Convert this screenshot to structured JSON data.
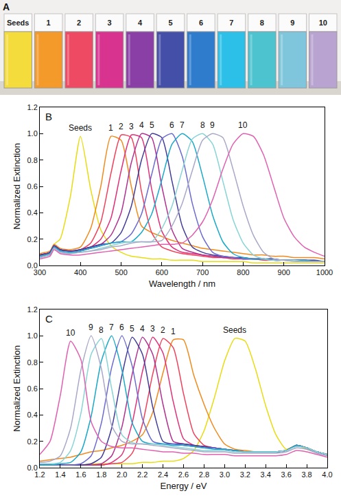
{
  "photo": {
    "panel_label": "A",
    "samples": [
      {
        "label": "Seeds",
        "color": "#f4dc3c"
      },
      {
        "label": "1",
        "color": "#f39a2a"
      },
      {
        "label": "2",
        "color": "#ee4a63"
      },
      {
        "label": "3",
        "color": "#d93390"
      },
      {
        "label": "4",
        "color": "#8a3fa6"
      },
      {
        "label": "5",
        "color": "#4450a8"
      },
      {
        "label": "6",
        "color": "#2f7ccc"
      },
      {
        "label": "7",
        "color": "#2cc0e8"
      },
      {
        "label": "8",
        "color": "#4cc3cf"
      },
      {
        "label": "9",
        "color": "#7fc6dc"
      },
      {
        "label": "10",
        "color": "#b9a3d1"
      }
    ]
  },
  "chart_data": [
    {
      "type": "line",
      "panel_label": "B",
      "xlabel": "Wavelength / nm",
      "ylabel": "Normalized Extinction",
      "xlim": [
        300,
        1000
      ],
      "xticks": [
        300,
        400,
        500,
        600,
        700,
        800,
        900,
        1000
      ],
      "ylim": [
        0,
        1.2
      ],
      "yticks": [
        {
          "value": 0,
          "label": "0.0"
        },
        0.2,
        0.4,
        0.6,
        0.8,
        {
          "value": 1,
          "label": "1.0"
        },
        1.2
      ],
      "grid": false,
      "x": [
        300,
        325,
        335,
        350,
        375,
        400,
        425,
        450,
        475,
        500,
        525,
        550,
        575,
        600,
        625,
        650,
        675,
        700,
        725,
        750,
        775,
        800,
        825,
        850,
        875,
        900,
        925,
        950,
        975,
        1000
      ],
      "series": [
        {
          "name": "Seeds",
          "color": "#e8dc10",
          "values": [
            0.08,
            0.09,
            0.16,
            0.2,
            0.52,
            0.98,
            0.58,
            0.27,
            0.15,
            0.1,
            0.07,
            0.06,
            0.05,
            0.05,
            0.04,
            0.04,
            0.04,
            0.03,
            0.03,
            0.03,
            0.03,
            0.03,
            0.02,
            0.02,
            0.02,
            0.02,
            0.02,
            0.02,
            0.02,
            0.02
          ]
        },
        {
          "name": "1",
          "color": "#f08a1c",
          "values": [
            0.09,
            0.11,
            0.16,
            0.13,
            0.12,
            0.14,
            0.28,
            0.6,
            0.98,
            0.95,
            0.6,
            0.3,
            0.25,
            0.22,
            0.19,
            0.17,
            0.15,
            0.13,
            0.12,
            0.11,
            0.1,
            0.09,
            0.08,
            0.08,
            0.07,
            0.07,
            0.06,
            0.06,
            0.06,
            0.05
          ]
        },
        {
          "name": "2",
          "color": "#f0405a",
          "values": [
            0.08,
            0.1,
            0.15,
            0.12,
            0.11,
            0.12,
            0.17,
            0.33,
            0.7,
            0.99,
            0.97,
            0.56,
            0.25,
            0.14,
            0.11,
            0.09,
            0.08,
            0.07,
            0.06,
            0.06,
            0.05,
            0.05,
            0.05,
            0.04,
            0.04,
            0.04,
            0.04,
            0.03,
            0.03,
            0.03
          ]
        },
        {
          "name": "3",
          "color": "#e0307a",
          "values": [
            0.08,
            0.1,
            0.15,
            0.12,
            0.11,
            0.12,
            0.14,
            0.2,
            0.36,
            0.72,
            0.99,
            0.97,
            0.58,
            0.26,
            0.14,
            0.1,
            0.09,
            0.08,
            0.07,
            0.06,
            0.06,
            0.05,
            0.05,
            0.05,
            0.04,
            0.04,
            0.04,
            0.04,
            0.03,
            0.03
          ]
        },
        {
          "name": "4",
          "color": "#b03090",
          "values": [
            0.08,
            0.1,
            0.15,
            0.12,
            0.11,
            0.12,
            0.14,
            0.16,
            0.23,
            0.4,
            0.78,
            1.0,
            0.97,
            0.6,
            0.27,
            0.13,
            0.1,
            0.08,
            0.07,
            0.06,
            0.06,
            0.05,
            0.05,
            0.05,
            0.04,
            0.04,
            0.04,
            0.04,
            0.03,
            0.03
          ]
        },
        {
          "name": "5",
          "color": "#403c98",
          "values": [
            0.08,
            0.1,
            0.15,
            0.12,
            0.11,
            0.12,
            0.14,
            0.16,
            0.17,
            0.25,
            0.45,
            0.8,
            1.0,
            0.97,
            0.64,
            0.3,
            0.14,
            0.1,
            0.08,
            0.07,
            0.06,
            0.06,
            0.05,
            0.05,
            0.05,
            0.04,
            0.04,
            0.04,
            0.04,
            0.03
          ]
        },
        {
          "name": "6",
          "color": "#6a6ad0",
          "values": [
            0.07,
            0.09,
            0.14,
            0.11,
            0.1,
            0.11,
            0.13,
            0.15,
            0.17,
            0.18,
            0.24,
            0.39,
            0.69,
            0.96,
            1.0,
            0.83,
            0.47,
            0.22,
            0.1,
            0.07,
            0.06,
            0.05,
            0.05,
            0.05,
            0.04,
            0.04,
            0.04,
            0.04,
            0.03,
            0.03
          ]
        },
        {
          "name": "7",
          "color": "#18a8c8",
          "values": [
            0.07,
            0.09,
            0.14,
            0.11,
            0.1,
            0.11,
            0.13,
            0.15,
            0.17,
            0.18,
            0.18,
            0.25,
            0.39,
            0.65,
            0.92,
            1.0,
            0.94,
            0.68,
            0.38,
            0.18,
            0.09,
            0.06,
            0.05,
            0.05,
            0.04,
            0.04,
            0.04,
            0.04,
            0.03,
            0.03
          ]
        },
        {
          "name": "8",
          "color": "#88d4d4",
          "values": [
            0.06,
            0.08,
            0.13,
            0.1,
            0.09,
            0.1,
            0.11,
            0.13,
            0.15,
            0.17,
            0.18,
            0.18,
            0.18,
            0.28,
            0.45,
            0.72,
            0.96,
            1.0,
            0.92,
            0.64,
            0.35,
            0.17,
            0.08,
            0.05,
            0.04,
            0.04,
            0.04,
            0.03,
            0.03,
            0.03
          ]
        },
        {
          "name": "9",
          "color": "#a8a8c8",
          "values": [
            0.06,
            0.08,
            0.13,
            0.1,
            0.09,
            0.1,
            0.11,
            0.12,
            0.14,
            0.15,
            0.17,
            0.18,
            0.18,
            0.19,
            0.3,
            0.47,
            0.72,
            0.95,
            1.0,
            0.97,
            0.73,
            0.45,
            0.23,
            0.1,
            0.05,
            0.04,
            0.03,
            0.03,
            0.03,
            0.03
          ]
        },
        {
          "name": "10",
          "color": "#e060b0",
          "values": [
            0.05,
            0.07,
            0.12,
            0.09,
            0.08,
            0.08,
            0.09,
            0.1,
            0.11,
            0.12,
            0.13,
            0.14,
            0.15,
            0.16,
            0.16,
            0.17,
            0.23,
            0.33,
            0.5,
            0.73,
            0.92,
            1.0,
            0.98,
            0.84,
            0.6,
            0.36,
            0.22,
            0.14,
            0.1,
            0.07
          ]
        }
      ]
    },
    {
      "type": "line",
      "panel_label": "C",
      "xlabel": "Energy / eV",
      "ylabel": "Normalized Extinction",
      "xlim": [
        1.2,
        4.0
      ],
      "xticks": [
        1.2,
        1.4,
        1.6,
        1.8,
        {
          "value": 2,
          "label": "2.0"
        },
        2.2,
        2.4,
        2.6,
        2.8,
        {
          "value": 3,
          "label": "3.0"
        },
        3.2,
        3.4,
        3.6,
        3.8,
        {
          "value": 4,
          "label": "4.0"
        }
      ],
      "ylim": [
        0,
        1.2
      ],
      "yticks": [
        {
          "value": 0,
          "label": "0.0"
        },
        0.2,
        0.4,
        0.6,
        0.8,
        {
          "value": 1,
          "label": "1.0"
        },
        1.2
      ],
      "grid": false,
      "x": [
        1.2,
        1.3,
        1.4,
        1.5,
        1.6,
        1.7,
        1.8,
        1.9,
        2.0,
        2.1,
        2.2,
        2.3,
        2.4,
        2.5,
        2.6,
        2.7,
        2.8,
        2.9,
        3.0,
        3.1,
        3.2,
        3.3,
        3.4,
        3.5,
        3.6,
        3.7,
        3.8,
        3.9,
        4.0
      ],
      "series": [
        {
          "name": "Seeds",
          "color": "#e8dc10",
          "values": [
            0.02,
            0.02,
            0.02,
            0.02,
            0.02,
            0.03,
            0.03,
            0.03,
            0.03,
            0.03,
            0.04,
            0.04,
            0.05,
            0.05,
            0.07,
            0.13,
            0.28,
            0.53,
            0.81,
            0.98,
            0.96,
            0.75,
            0.47,
            0.25,
            0.14,
            0.17,
            0.14,
            0.12,
            0.1
          ]
        },
        {
          "name": "1",
          "color": "#f08a1c",
          "values": [
            0.05,
            0.06,
            0.07,
            0.08,
            0.1,
            0.12,
            0.13,
            0.15,
            0.17,
            0.2,
            0.25,
            0.42,
            0.72,
            0.97,
            0.97,
            0.7,
            0.48,
            0.3,
            0.18,
            0.14,
            0.13,
            0.12,
            0.12,
            0.12,
            0.13,
            0.17,
            0.15,
            0.12,
            0.1
          ]
        },
        {
          "name": "2",
          "color": "#f0405a",
          "values": [
            0.02,
            0.02,
            0.02,
            0.02,
            0.02,
            0.02,
            0.02,
            0.03,
            0.04,
            0.11,
            0.33,
            0.71,
            0.98,
            0.91,
            0.56,
            0.26,
            0.17,
            0.15,
            0.14,
            0.13,
            0.12,
            0.12,
            0.12,
            0.12,
            0.13,
            0.17,
            0.15,
            0.12,
            0.1
          ]
        },
        {
          "name": "3",
          "color": "#e0307a",
          "values": [
            0.02,
            0.02,
            0.02,
            0.02,
            0.02,
            0.02,
            0.02,
            0.04,
            0.1,
            0.34,
            0.73,
            0.99,
            0.87,
            0.5,
            0.22,
            0.17,
            0.16,
            0.15,
            0.14,
            0.13,
            0.12,
            0.12,
            0.12,
            0.12,
            0.13,
            0.17,
            0.15,
            0.12,
            0.1
          ]
        },
        {
          "name": "4",
          "color": "#b03090",
          "values": [
            0.02,
            0.02,
            0.02,
            0.02,
            0.02,
            0.02,
            0.03,
            0.09,
            0.31,
            0.71,
            0.99,
            0.86,
            0.48,
            0.2,
            0.18,
            0.17,
            0.16,
            0.15,
            0.14,
            0.13,
            0.12,
            0.12,
            0.12,
            0.12,
            0.13,
            0.17,
            0.15,
            0.12,
            0.1
          ]
        },
        {
          "name": "5",
          "color": "#403c98",
          "values": [
            0.02,
            0.02,
            0.02,
            0.02,
            0.02,
            0.03,
            0.08,
            0.3,
            0.7,
            0.99,
            0.86,
            0.46,
            0.2,
            0.18,
            0.18,
            0.17,
            0.16,
            0.15,
            0.14,
            0.13,
            0.12,
            0.12,
            0.12,
            0.12,
            0.13,
            0.17,
            0.15,
            0.12,
            0.1
          ]
        },
        {
          "name": "6",
          "color": "#6a6ad0",
          "values": [
            0.02,
            0.02,
            0.02,
            0.02,
            0.03,
            0.09,
            0.34,
            0.76,
            1.0,
            0.77,
            0.37,
            0.2,
            0.18,
            0.18,
            0.17,
            0.16,
            0.15,
            0.15,
            0.14,
            0.13,
            0.12,
            0.12,
            0.12,
            0.12,
            0.13,
            0.17,
            0.15,
            0.12,
            0.1
          ]
        },
        {
          "name": "7",
          "color": "#18a8c8",
          "values": [
            0.02,
            0.02,
            0.03,
            0.04,
            0.12,
            0.39,
            0.81,
            1.0,
            0.74,
            0.34,
            0.2,
            0.18,
            0.18,
            0.17,
            0.17,
            0.16,
            0.15,
            0.14,
            0.14,
            0.13,
            0.12,
            0.12,
            0.12,
            0.12,
            0.13,
            0.17,
            0.15,
            0.12,
            0.1
          ]
        },
        {
          "name": "8",
          "color": "#88d4d4",
          "values": [
            0.03,
            0.03,
            0.04,
            0.13,
            0.41,
            0.86,
            0.98,
            0.6,
            0.25,
            0.19,
            0.18,
            0.18,
            0.17,
            0.16,
            0.15,
            0.14,
            0.13,
            0.13,
            0.13,
            0.12,
            0.12,
            0.12,
            0.12,
            0.12,
            0.13,
            0.16,
            0.15,
            0.12,
            0.1
          ]
        },
        {
          "name": "9",
          "color": "#a8a8c8",
          "values": [
            0.04,
            0.05,
            0.09,
            0.3,
            0.74,
            1.0,
            0.75,
            0.32,
            0.2,
            0.18,
            0.18,
            0.17,
            0.16,
            0.15,
            0.14,
            0.13,
            0.12,
            0.12,
            0.12,
            0.11,
            0.11,
            0.11,
            0.11,
            0.11,
            0.12,
            0.15,
            0.14,
            0.11,
            0.09
          ]
        },
        {
          "name": "10",
          "color": "#e060b0",
          "values": [
            0.1,
            0.2,
            0.55,
            0.96,
            0.82,
            0.35,
            0.2,
            0.16,
            0.15,
            0.15,
            0.14,
            0.13,
            0.12,
            0.12,
            0.11,
            0.11,
            0.1,
            0.1,
            0.1,
            0.09,
            0.09,
            0.09,
            0.09,
            0.09,
            0.1,
            0.13,
            0.12,
            0.1,
            0.08
          ]
        }
      ]
    }
  ]
}
